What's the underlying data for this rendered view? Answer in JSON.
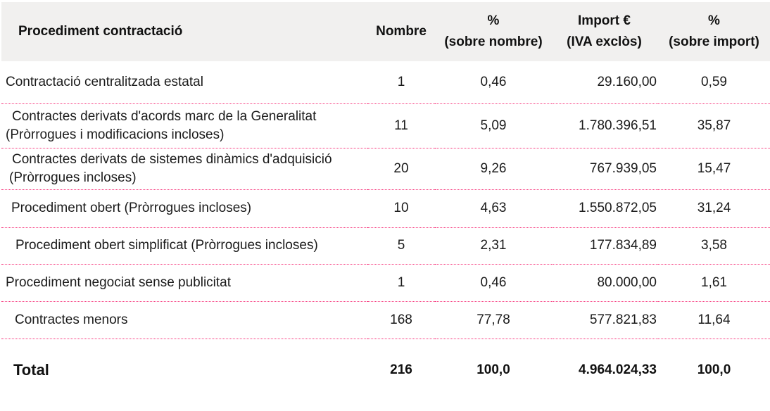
{
  "table": {
    "columns": [
      {
        "id": "procedure",
        "label": "Procediment contractació",
        "sublabel": ""
      },
      {
        "id": "nombre",
        "label": "Nombre",
        "sublabel": ""
      },
      {
        "id": "pct_nombre",
        "label": "%",
        "sublabel": "(sobre nombre)"
      },
      {
        "id": "import",
        "label": "Import €",
        "sublabel": "(IVA exclòs)"
      },
      {
        "id": "pct_import",
        "label": "%",
        "sublabel": "(sobre import)"
      }
    ],
    "rows": [
      {
        "procedure_lines": [
          "Contractació centralitzada estatal"
        ],
        "nombre": "1",
        "pct_nombre": "0,46",
        "import": "29.160,00",
        "pct_import": "0,59"
      },
      {
        "procedure_lines": [
          "Contractes derivats d'acords marc de la Generalitat",
          "(Pròrrogues i modificacions incloses)"
        ],
        "nombre": "11",
        "pct_nombre": "5,09",
        "import": "1.780.396,51",
        "pct_import": "35,87"
      },
      {
        "procedure_lines": [
          "Contractes derivats de sistemes dinàmics d'adquisició",
          "(Pròrrogues incloses)"
        ],
        "nombre": "20",
        "pct_nombre": "9,26",
        "import": "767.939,05",
        "pct_import": "15,47"
      },
      {
        "procedure_lines": [
          "Procediment obert (Pròrrogues incloses)"
        ],
        "nombre": "10",
        "pct_nombre": "4,63",
        "import": "1.550.872,05",
        "pct_import": "31,24"
      },
      {
        "procedure_lines": [
          "Procediment obert simplificat (Pròrrogues incloses)"
        ],
        "nombre": "5",
        "pct_nombre": "2,31",
        "import": "177.834,89",
        "pct_import": "3,58"
      },
      {
        "procedure_lines": [
          "Procediment negociat sense publicitat"
        ],
        "nombre": "1",
        "pct_nombre": "0,46",
        "import": "80.000,00",
        "pct_import": "1,61"
      },
      {
        "procedure_lines": [
          "Contractes menors"
        ],
        "nombre": "168",
        "pct_nombre": "77,78",
        "import": "577.821,83",
        "pct_import": "11,64"
      }
    ],
    "total": {
      "label": "Total",
      "nombre": "216",
      "pct_nombre": "100,0",
      "import": "4.964.024,33",
      "pct_import": "100,0"
    }
  },
  "colors": {
    "header_background": "#f1f0ef",
    "separator_pink": "#f6337a",
    "text": "#1b1b1b"
  }
}
